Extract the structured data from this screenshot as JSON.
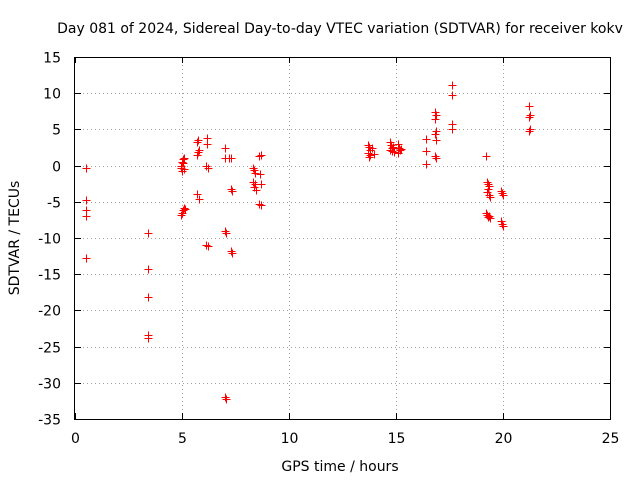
{
  "chart_data": {
    "type": "scatter",
    "title": "Day 081 of 2024, Sidereal Day-to-day VTEC variation (SDTVAR) for receiver kokv",
    "xlabel": "GPS time / hours",
    "ylabel": "SDTVAR / TECUs",
    "xlim": [
      0,
      25
    ],
    "ylim": [
      -35,
      15
    ],
    "xticks": [
      0,
      5,
      10,
      15,
      20,
      25
    ],
    "yticks": [
      15,
      10,
      5,
      0,
      -5,
      -10,
      -15,
      -20,
      -25,
      -30,
      -35
    ],
    "xtick_labels": [
      "0",
      "5",
      "10",
      "15",
      "20",
      "25"
    ],
    "ytick_labels": [
      "15",
      "10",
      "5",
      "0",
      "-5",
      "-10",
      "-15",
      "-20",
      "-25",
      "-30",
      "-35"
    ],
    "grid": true,
    "marker": "plus",
    "color": "#ff0000",
    "series": [
      {
        "name": "SDTVAR",
        "points": [
          [
            0.5,
            -0.3
          ],
          [
            0.5,
            -4.7
          ],
          [
            0.5,
            -6.2
          ],
          [
            0.5,
            -7.0
          ],
          [
            0.5,
            -12.8
          ],
          [
            3.4,
            -9.3
          ],
          [
            3.4,
            -14.3
          ],
          [
            3.4,
            -18.1
          ],
          [
            3.4,
            -23.4
          ],
          [
            3.4,
            -23.8
          ],
          [
            4.95,
            0.0
          ],
          [
            5.0,
            0.5
          ],
          [
            5.05,
            0.9
          ],
          [
            5.1,
            1.1
          ],
          [
            5.0,
            -0.8
          ],
          [
            4.95,
            -0.3
          ],
          [
            5.1,
            -0.5
          ],
          [
            5.05,
            0.3
          ],
          [
            4.95,
            -6.8
          ],
          [
            5.0,
            -6.5
          ],
          [
            5.05,
            -6.2
          ],
          [
            5.1,
            -5.9
          ],
          [
            5.15,
            -6.0
          ],
          [
            5.7,
            3.3
          ],
          [
            5.75,
            3.6
          ],
          [
            5.7,
            1.5
          ],
          [
            5.75,
            1.9
          ],
          [
            5.8,
            2.2
          ],
          [
            5.7,
            -3.9
          ],
          [
            5.8,
            -4.6
          ],
          [
            6.15,
            3.8
          ],
          [
            6.15,
            3.0
          ],
          [
            6.1,
            -0.1
          ],
          [
            6.2,
            -0.3
          ],
          [
            6.1,
            -10.9
          ],
          [
            6.2,
            -11.1
          ],
          [
            7.0,
            2.5
          ],
          [
            7.0,
            1.0
          ],
          [
            7.2,
            1.0
          ],
          [
            7.3,
            1.0
          ],
          [
            7.0,
            -9.0
          ],
          [
            7.05,
            -9.3
          ],
          [
            7.3,
            -3.2
          ],
          [
            7.35,
            -3.5
          ],
          [
            7.3,
            -11.8
          ],
          [
            7.35,
            -12.1
          ],
          [
            7.0,
            -32.0
          ],
          [
            7.05,
            -32.3
          ],
          [
            8.3,
            -0.4
          ],
          [
            8.35,
            -0.6
          ],
          [
            8.4,
            -1.0
          ],
          [
            8.3,
            -2.2
          ],
          [
            8.4,
            -2.6
          ],
          [
            8.35,
            -3.0
          ],
          [
            8.45,
            -3.4
          ],
          [
            8.6,
            1.3
          ],
          [
            8.7,
            1.4
          ],
          [
            8.65,
            -1.1
          ],
          [
            8.7,
            -2.5
          ],
          [
            8.6,
            -5.3
          ],
          [
            8.7,
            -5.5
          ],
          [
            13.7,
            2.8
          ],
          [
            13.75,
            2.6
          ],
          [
            13.8,
            2.2
          ],
          [
            13.7,
            1.8
          ],
          [
            13.8,
            1.5
          ],
          [
            13.75,
            1.2
          ],
          [
            13.9,
            2.4
          ],
          [
            13.95,
            1.6
          ],
          [
            14.7,
            3.2
          ],
          [
            14.75,
            2.8
          ],
          [
            14.8,
            2.5
          ],
          [
            14.7,
            2.2
          ],
          [
            14.8,
            2.0
          ],
          [
            14.9,
            1.9
          ],
          [
            14.85,
            2.6
          ],
          [
            15.1,
            3.0
          ],
          [
            15.15,
            2.5
          ],
          [
            15.2,
            2.1
          ],
          [
            15.1,
            1.8
          ],
          [
            15.25,
            2.3
          ],
          [
            16.4,
            3.7
          ],
          [
            16.4,
            2.0
          ],
          [
            16.4,
            0.2
          ],
          [
            16.8,
            7.4
          ],
          [
            16.85,
            7.0
          ],
          [
            16.8,
            6.5
          ],
          [
            16.85,
            4.8
          ],
          [
            16.8,
            4.3
          ],
          [
            16.85,
            3.5
          ],
          [
            16.8,
            1.3
          ],
          [
            16.85,
            1.1
          ],
          [
            17.6,
            11.1
          ],
          [
            17.6,
            9.7
          ],
          [
            17.6,
            5.8
          ],
          [
            17.6,
            5.1
          ],
          [
            19.2,
            1.3
          ],
          [
            19.25,
            -2.2
          ],
          [
            19.3,
            -2.5
          ],
          [
            19.35,
            -2.8
          ],
          [
            19.3,
            -3.3
          ],
          [
            19.25,
            -3.7
          ],
          [
            19.35,
            -4.0
          ],
          [
            19.4,
            -4.3
          ],
          [
            19.2,
            -6.5
          ],
          [
            19.25,
            -6.8
          ],
          [
            19.3,
            -7.1
          ],
          [
            19.35,
            -6.9
          ],
          [
            19.4,
            -7.3
          ],
          [
            19.9,
            -3.5
          ],
          [
            19.95,
            -3.8
          ],
          [
            20.0,
            -4.1
          ],
          [
            19.9,
            -7.6
          ],
          [
            19.95,
            -8.0
          ],
          [
            20.0,
            -8.4
          ],
          [
            21.2,
            8.2
          ],
          [
            21.25,
            7.0
          ],
          [
            21.2,
            6.7
          ],
          [
            21.25,
            5.1
          ],
          [
            21.2,
            4.8
          ]
        ]
      }
    ]
  }
}
